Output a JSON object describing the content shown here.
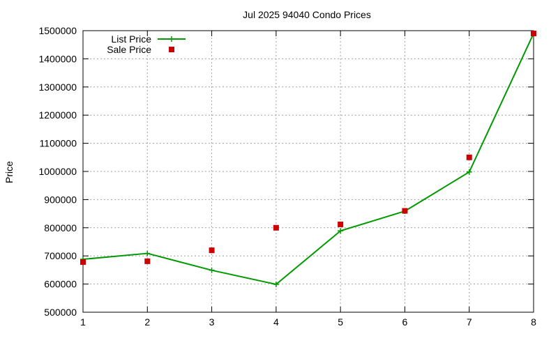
{
  "chart_data": {
    "type": "line",
    "title": "Jul 2025 94040 Condo Prices",
    "xlabel": "",
    "ylabel": "Price",
    "x": [
      1,
      2,
      3,
      4,
      5,
      6,
      7,
      8
    ],
    "xlim": [
      1,
      8
    ],
    "ylim": [
      500000,
      1500000
    ],
    "x_ticks": [
      "1",
      "2",
      "3",
      "4",
      "5",
      "6",
      "7",
      "8"
    ],
    "y_ticks": [
      "500000",
      "600000",
      "700000",
      "800000",
      "900000",
      "1000000",
      "1100000",
      "1200000",
      "1300000",
      "1400000",
      "1500000"
    ],
    "grid": true,
    "legend_position": "top-left",
    "series": [
      {
        "name": "List Price",
        "style": "line-with-plus-markers",
        "color": "#009900",
        "values": [
          688000,
          709000,
          649000,
          599000,
          789000,
          859000,
          998000,
          1490000
        ]
      },
      {
        "name": "Sale Price",
        "style": "square-markers",
        "color": "#cc0000",
        "values": [
          678000,
          681000,
          720000,
          800000,
          812000,
          860000,
          1050000,
          1490000
        ]
      }
    ]
  }
}
